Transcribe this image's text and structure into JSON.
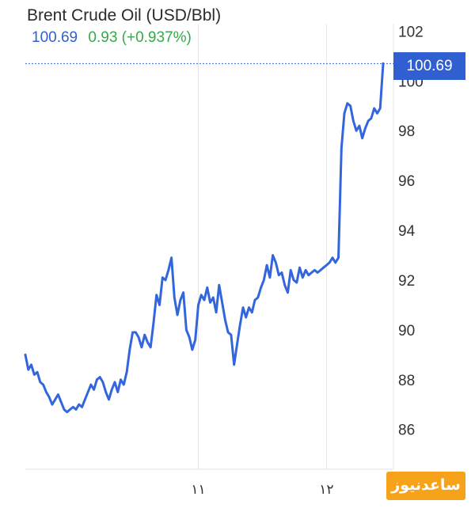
{
  "chart_data": {
    "type": "line",
    "title": "Brent Crude Oil (USD/Bbl)",
    "quote": {
      "last": "100.69",
      "change": "0.93 (+0.937%)"
    },
    "last_value_label": "100.69",
    "xlabel": "",
    "ylabel": "",
    "ylim": [
      84.4,
      102.3
    ],
    "y_ticks": [
      86,
      88,
      90,
      92,
      94,
      96,
      98,
      100,
      102
    ],
    "x_ticks": [
      {
        "label": "۱۱",
        "index": 58
      },
      {
        "label": "۱۲",
        "index": 101
      }
    ],
    "grid": {
      "vertical": true,
      "horizontal": false
    },
    "series": [
      {
        "color": "#3366dd",
        "values": [
          89.0,
          88.4,
          88.6,
          88.2,
          88.3,
          87.9,
          87.8,
          87.5,
          87.3,
          87.0,
          87.2,
          87.4,
          87.1,
          86.8,
          86.7,
          86.8,
          86.9,
          86.8,
          87.0,
          86.9,
          87.2,
          87.5,
          87.8,
          87.6,
          88.0,
          88.1,
          87.9,
          87.5,
          87.2,
          87.6,
          87.9,
          87.5,
          88.0,
          87.8,
          88.3,
          89.2,
          89.9,
          89.9,
          89.7,
          89.3,
          89.8,
          89.5,
          89.3,
          90.3,
          91.4,
          91.0,
          92.1,
          92.0,
          92.4,
          92.9,
          91.3,
          90.6,
          91.2,
          91.5,
          90.0,
          89.7,
          89.2,
          89.6,
          91.0,
          91.4,
          91.2,
          91.7,
          91.1,
          91.3,
          90.7,
          91.8,
          91.1,
          90.4,
          89.9,
          89.8,
          88.6,
          89.4,
          90.2,
          90.9,
          90.5,
          90.9,
          90.7,
          91.2,
          91.3,
          91.7,
          92.0,
          92.6,
          92.1,
          93.0,
          92.7,
          92.2,
          92.3,
          91.8,
          91.5,
          92.4,
          92.0,
          91.9,
          92.5,
          92.1,
          92.4,
          92.2,
          92.3,
          92.4,
          92.3,
          92.4,
          92.5,
          92.6,
          92.7,
          92.9,
          92.7,
          92.9,
          97.3,
          98.7,
          99.1,
          99.0,
          98.4,
          98.0,
          98.2,
          97.7,
          98.1,
          98.4,
          98.5,
          98.9,
          98.7,
          98.9,
          100.7
        ]
      }
    ]
  },
  "watermark": "ساعدنیوز"
}
